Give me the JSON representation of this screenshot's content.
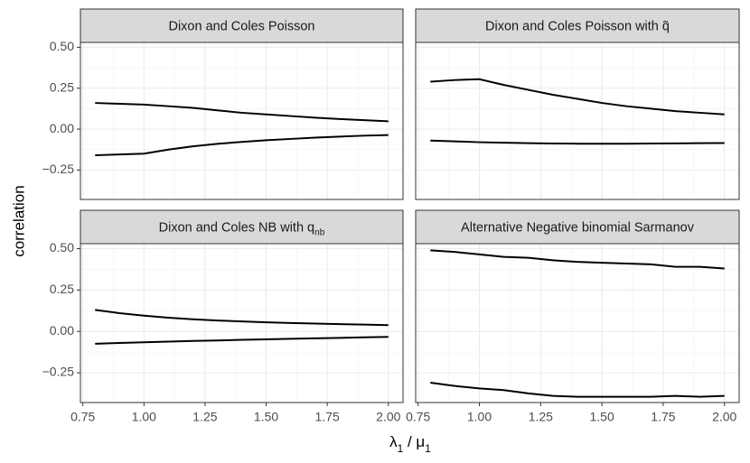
{
  "ylabel": "correlation",
  "xlabel_parts": [
    {
      "text": "λ"
    },
    {
      "text": "1",
      "sub": true
    },
    {
      "text": " / μ"
    },
    {
      "text": "1",
      "sub": true
    }
  ],
  "chart_data": [
    {
      "type": "line",
      "title_parts": [
        {
          "text": "Dixon and Coles Poisson"
        }
      ],
      "x": [
        0.8,
        0.9,
        1.0,
        1.1,
        1.2,
        1.3,
        1.4,
        1.5,
        1.6,
        1.7,
        1.8,
        1.9,
        2.0
      ],
      "series": [
        {
          "color": "#000000",
          "values": [
            0.16,
            0.155,
            0.15,
            0.14,
            0.13,
            0.115,
            0.1,
            0.09,
            0.08,
            0.07,
            0.062,
            0.055,
            0.048
          ]
        },
        {
          "color": "#000000",
          "values": [
            -0.16,
            -0.155,
            -0.15,
            -0.125,
            -0.105,
            -0.09,
            -0.078,
            -0.068,
            -0.06,
            -0.052,
            -0.046,
            -0.04,
            -0.036
          ]
        }
      ],
      "xlim": [
        0.74,
        2.06
      ],
      "xticks": [
        0.75,
        1.0,
        1.25,
        1.5,
        1.75,
        2.0
      ],
      "ylim": [
        -0.43,
        0.53
      ],
      "yticks": [
        {
          "value": -0.25,
          "label": "−0.25"
        },
        {
          "value": 0,
          "label": "0.00"
        },
        {
          "value": 0.25,
          "label": "0.25"
        },
        {
          "value": 0.5,
          "label": "0.50"
        }
      ],
      "grid": true
    },
    {
      "type": "line",
      "title_parts": [
        {
          "text": "Dixon and Coles Poisson with q̃"
        }
      ],
      "x": [
        0.8,
        0.9,
        1.0,
        1.1,
        1.2,
        1.3,
        1.4,
        1.5,
        1.6,
        1.7,
        1.8,
        1.9,
        2.0
      ],
      "series": [
        {
          "color": "#000000",
          "values": [
            0.29,
            0.3,
            0.305,
            0.27,
            0.24,
            0.21,
            0.185,
            0.16,
            0.14,
            0.125,
            0.11,
            0.1,
            0.09
          ]
        },
        {
          "color": "#000000",
          "values": [
            -0.07,
            -0.075,
            -0.08,
            -0.083,
            -0.086,
            -0.088,
            -0.089,
            -0.089,
            -0.089,
            -0.088,
            -0.087,
            -0.086,
            -0.085
          ]
        }
      ],
      "xlim": [
        0.74,
        2.06
      ],
      "xticks": [
        0.75,
        1.0,
        1.25,
        1.5,
        1.75,
        2.0
      ],
      "ylim": [
        -0.43,
        0.53
      ],
      "yticks": [
        -0.25,
        0,
        0.25,
        0.5
      ],
      "grid": true
    },
    {
      "type": "line",
      "title_parts": [
        {
          "text": "Dixon and Coles NB with q"
        },
        {
          "text": "nb",
          "sub": true
        }
      ],
      "x": [
        0.8,
        0.9,
        1.0,
        1.1,
        1.2,
        1.3,
        1.4,
        1.5,
        1.6,
        1.7,
        1.8,
        1.9,
        2.0
      ],
      "series": [
        {
          "color": "#000000",
          "values": [
            0.13,
            0.11,
            0.095,
            0.083,
            0.073,
            0.066,
            0.06,
            0.055,
            0.051,
            0.047,
            0.044,
            0.041,
            0.038
          ]
        },
        {
          "color": "#000000",
          "values": [
            -0.075,
            -0.07,
            -0.066,
            -0.062,
            -0.058,
            -0.055,
            -0.051,
            -0.048,
            -0.045,
            -0.042,
            -0.039,
            -0.036,
            -0.033
          ]
        }
      ],
      "xlim": [
        0.74,
        2.06
      ],
      "xticks": [
        {
          "value": 0.75,
          "label": "0.75"
        },
        {
          "value": 1.0,
          "label": "1.00"
        },
        {
          "value": 1.25,
          "label": "1.25"
        },
        {
          "value": 1.5,
          "label": "1.50"
        },
        {
          "value": 1.75,
          "label": "1.75"
        },
        {
          "value": 2.0,
          "label": "2.00"
        }
      ],
      "ylim": [
        -0.43,
        0.53
      ],
      "yticks": [
        {
          "value": -0.25,
          "label": "−0.25"
        },
        {
          "value": 0,
          "label": "0.00"
        },
        {
          "value": 0.25,
          "label": "0.25"
        },
        {
          "value": 0.5,
          "label": "0.50"
        }
      ],
      "grid": true
    },
    {
      "type": "line",
      "title_parts": [
        {
          "text": "Alternative Negative binomial Sarmanov"
        }
      ],
      "x": [
        0.8,
        0.9,
        1.0,
        1.1,
        1.2,
        1.3,
        1.4,
        1.5,
        1.6,
        1.7,
        1.8,
        1.9,
        2.0
      ],
      "series": [
        {
          "color": "#000000",
          "values": [
            0.49,
            0.48,
            0.465,
            0.45,
            0.445,
            0.43,
            0.42,
            0.415,
            0.41,
            0.405,
            0.39,
            0.39,
            0.38
          ]
        },
        {
          "color": "#000000",
          "values": [
            -0.31,
            -0.33,
            -0.345,
            -0.355,
            -0.375,
            -0.39,
            -0.395,
            -0.395,
            -0.395,
            -0.395,
            -0.39,
            -0.395,
            -0.39
          ]
        }
      ],
      "xlim": [
        0.74,
        2.06
      ],
      "xticks": [
        {
          "value": 0.75,
          "label": "0.75"
        },
        {
          "value": 1.0,
          "label": "1.00"
        },
        {
          "value": 1.25,
          "label": "1.25"
        },
        {
          "value": 1.5,
          "label": "1.50"
        },
        {
          "value": 1.75,
          "label": "1.75"
        },
        {
          "value": 2.0,
          "label": "2.00"
        }
      ],
      "ylim": [
        -0.43,
        0.53
      ],
      "yticks": [
        -0.25,
        0,
        0.25,
        0.5
      ],
      "grid": true
    }
  ]
}
